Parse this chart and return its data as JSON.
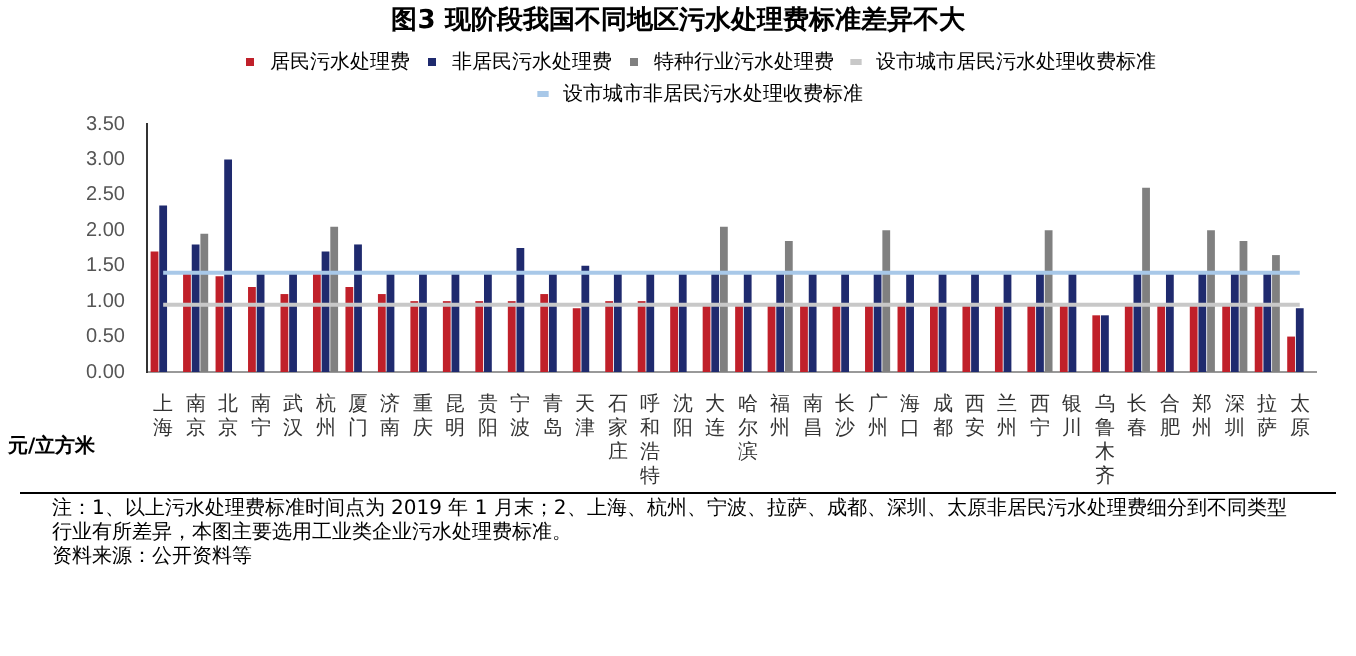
{
  "chart_data": {
    "type": "bar",
    "title": "图3  现阶段我国不同地区污水处理费标准差异不大",
    "ylabel": "元/立方米",
    "categories": [
      "上海",
      "南京",
      "北京",
      "南宁",
      "武汉",
      "杭州",
      "厦门",
      "济南",
      "重庆",
      "昆明",
      "贵阳",
      "宁波",
      "青岛",
      "天津",
      "石家庄",
      "呼和浩特",
      "沈阳",
      "大连",
      "哈尔滨",
      "福州",
      "南昌",
      "长沙",
      "广州",
      "海口",
      "成都",
      "西安",
      "兰州",
      "西宁",
      "银川",
      "乌鲁木齐",
      "长春",
      "合肥",
      "郑州",
      "深圳",
      "拉萨",
      "太原"
    ],
    "series": [
      {
        "name": "居民污水处理费",
        "color": "#c0202a",
        "values": [
          1.7,
          1.4,
          1.35,
          1.2,
          1.1,
          1.4,
          1.2,
          1.1,
          1.0,
          1.0,
          1.0,
          1.0,
          1.1,
          0.9,
          1.0,
          1.0,
          0.95,
          0.95,
          0.95,
          0.95,
          0.95,
          0.95,
          0.95,
          0.95,
          0.95,
          0.95,
          0.95,
          0.95,
          0.95,
          0.8,
          0.95,
          0.95,
          0.95,
          0.95,
          0.95,
          0.5
        ]
      },
      {
        "name": "非居民污水处理费",
        "color": "#1f2a6e",
        "values": [
          2.35,
          1.8,
          3.0,
          1.4,
          1.4,
          1.7,
          1.8,
          1.4,
          1.4,
          1.4,
          1.4,
          1.75,
          1.4,
          1.5,
          1.4,
          1.4,
          1.4,
          1.4,
          1.4,
          1.4,
          1.4,
          1.4,
          1.4,
          1.4,
          1.4,
          1.4,
          1.4,
          1.4,
          1.4,
          0.8,
          1.4,
          1.4,
          1.4,
          1.4,
          1.4,
          0.9
        ]
      },
      {
        "name": "特种行业污水处理费",
        "color": "#808080",
        "values": [
          null,
          1.95,
          null,
          null,
          null,
          2.05,
          null,
          null,
          null,
          null,
          null,
          null,
          null,
          null,
          null,
          null,
          null,
          2.05,
          null,
          1.85,
          null,
          null,
          2.0,
          null,
          null,
          null,
          null,
          2.0,
          null,
          null,
          2.6,
          null,
          2.0,
          1.85,
          1.65,
          null
        ]
      },
      {
        "name": "设市城市居民污水处理收费标准",
        "type": "line",
        "color": "#c8c8c8",
        "values": [
          0.95,
          0.95,
          0.95,
          0.95,
          0.95,
          0.95,
          0.95,
          0.95,
          0.95,
          0.95,
          0.95,
          0.95,
          0.95,
          0.95,
          0.95,
          0.95,
          0.95,
          0.95,
          0.95,
          0.95,
          0.95,
          0.95,
          0.95,
          0.95,
          0.95,
          0.95,
          0.95,
          0.95,
          0.95,
          0.95,
          0.95,
          0.95,
          0.95,
          0.95,
          0.95,
          0.95
        ]
      },
      {
        "name": "设市城市非居民污水处理收费标准",
        "type": "line",
        "color": "#a8c8e8",
        "values": [
          1.4,
          1.4,
          1.4,
          1.4,
          1.4,
          1.4,
          1.4,
          1.4,
          1.4,
          1.4,
          1.4,
          1.4,
          1.4,
          1.4,
          1.4,
          1.4,
          1.4,
          1.4,
          1.4,
          1.4,
          1.4,
          1.4,
          1.4,
          1.4,
          1.4,
          1.4,
          1.4,
          1.4,
          1.4,
          1.4,
          1.4,
          1.4,
          1.4,
          1.4,
          1.4,
          1.4
        ]
      }
    ],
    "ylim": [
      0,
      3.5
    ],
    "yticks": [
      {
        "value": 0,
        "label": "0.00"
      },
      {
        "value": 0.5,
        "label": "0.50"
      },
      {
        "value": 1,
        "label": "1.00"
      },
      {
        "value": 1.5,
        "label": "1.50"
      },
      {
        "value": 2,
        "label": "2.00"
      },
      {
        "value": 2.5,
        "label": "2.50"
      },
      {
        "value": 3,
        "label": "3.00"
      },
      {
        "value": 3.5,
        "label": "3.50"
      }
    ],
    "grid": false,
    "legend": "top",
    "marker": "none",
    "annotations": [
      "注：1、以上污水处理费标准时间点为 2019 年 1 月末；2、上海、杭州、宁波、拉萨、成都、深圳、太原非居民污水处理费细分到不同类型行业有所差异，本图主要选用工业类企业污水处理费标准。",
      "资料来源：公开资料等"
    ]
  }
}
